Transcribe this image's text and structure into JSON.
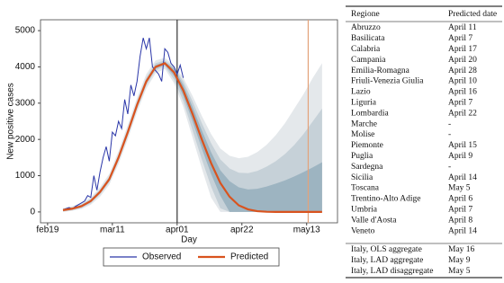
{
  "chart_data": {
    "type": "line",
    "x_label": "Day",
    "y_label": "New positive cases",
    "xlim": [
      -2.3,
      94
    ],
    "ylim": [
      -300,
      5300
    ],
    "xticks": [
      {
        "value": 0,
        "label": "feb19"
      },
      {
        "value": 21,
        "label": "mar11"
      },
      {
        "value": 42,
        "label": "apr01"
      },
      {
        "value": 63,
        "label": "apr22"
      },
      {
        "value": 84,
        "label": "may13"
      }
    ],
    "yticks": [
      0,
      1000,
      2000,
      3000,
      4000,
      5000
    ],
    "legend": "bottom",
    "series": [
      {
        "name": "Observed",
        "color": "#2a36a8",
        "x": [
          5,
          6,
          7,
          8,
          9,
          10,
          11,
          12,
          13,
          14,
          15,
          16,
          17,
          18,
          19,
          20,
          21,
          22,
          23,
          24,
          25,
          26,
          27,
          28,
          29,
          30,
          31,
          32,
          33,
          34,
          35,
          36,
          37,
          38,
          39,
          40,
          41,
          42,
          43,
          44
        ],
        "values": [
          60,
          90,
          120,
          80,
          150,
          200,
          250,
          300,
          450,
          400,
          1000,
          600,
          1100,
          1500,
          1800,
          1400,
          2200,
          2100,
          2500,
          2300,
          3100,
          2700,
          3500,
          3200,
          3600,
          4300,
          4800,
          4500,
          4800,
          4000,
          3900,
          3800,
          3600,
          4500,
          4400,
          4100,
          4000,
          3800,
          4050,
          3700
        ]
      },
      {
        "name": "Predicted",
        "color": "#d9531e",
        "x": [
          5,
          8,
          11,
          14,
          17,
          20,
          23,
          26,
          29,
          32,
          35,
          38,
          41,
          44,
          47,
          50,
          53,
          56,
          59,
          62,
          65,
          68,
          71,
          74,
          77,
          80,
          83,
          86,
          89
        ],
        "values": [
          50,
          90,
          160,
          300,
          550,
          900,
          1500,
          2200,
          2950,
          3600,
          4000,
          4100,
          3850,
          3350,
          2700,
          2000,
          1350,
          800,
          420,
          180,
          70,
          20,
          5,
          0,
          0,
          0,
          0,
          0,
          0
        ]
      }
    ],
    "bands": [
      {
        "color": "#e4e8eb",
        "upper": [
          110,
          160,
          250,
          400,
          680,
          1050,
          1680,
          2400,
          3150,
          3800,
          4180,
          4250,
          4050,
          3700,
          3200,
          2650,
          2150,
          1750,
          1550,
          1480,
          1520,
          1650,
          1850,
          2120,
          2450,
          2850,
          3250,
          3700,
          4100
        ],
        "lower": [
          0,
          30,
          80,
          200,
          420,
          750,
          1320,
          2000,
          2750,
          3400,
          3820,
          3950,
          3550,
          2900,
          2050,
          1200,
          400,
          0,
          0,
          0,
          0,
          0,
          0,
          0,
          0,
          0,
          0,
          0,
          0
        ]
      },
      {
        "color": "#c6d1d8",
        "upper": [
          90,
          130,
          210,
          360,
          620,
          980,
          1600,
          2310,
          3060,
          3710,
          4100,
          4180,
          4000,
          3600,
          3050,
          2450,
          1900,
          1450,
          1200,
          1080,
          1070,
          1130,
          1250,
          1400,
          1600,
          1850,
          2150,
          2500,
          2850
        ],
        "lower": [
          10,
          50,
          110,
          240,
          480,
          820,
          1400,
          2090,
          2840,
          3490,
          3900,
          4020,
          3650,
          3050,
          2250,
          1450,
          700,
          100,
          0,
          0,
          0,
          0,
          0,
          0,
          0,
          0,
          0,
          0,
          0
        ]
      },
      {
        "color": "#9db4c1",
        "upper": [
          70,
          110,
          185,
          330,
          585,
          940,
          1550,
          2250,
          3000,
          3650,
          4050,
          4140,
          3950,
          3500,
          2900,
          2250,
          1650,
          1150,
          850,
          680,
          620,
          640,
          700,
          780,
          870,
          980,
          1100,
          1230,
          1370
        ],
        "lower": [
          30,
          70,
          135,
          270,
          515,
          860,
          1450,
          2150,
          2900,
          3550,
          3950,
          4060,
          3750,
          3200,
          2500,
          1750,
          1050,
          450,
          0,
          0,
          0,
          0,
          0,
          0,
          0,
          0,
          0,
          0,
          0
        ]
      }
    ],
    "vlines": [
      {
        "value": 42,
        "color": "#333333"
      },
      {
        "value": 84.5,
        "color": "#e3a27a"
      }
    ]
  },
  "table": {
    "header": [
      "Regione",
      "Predicted date"
    ],
    "rows": [
      [
        "Abruzzo",
        "April 11"
      ],
      [
        "Basilicata",
        "April 7"
      ],
      [
        "Calabria",
        "April 17"
      ],
      [
        "Campania",
        "April 20"
      ],
      [
        "Emilia-Romagna",
        "April 28"
      ],
      [
        "Friuli-Venezia Giulia",
        "April 10"
      ],
      [
        "Lazio",
        "April 16"
      ],
      [
        "Liguria",
        "April 7"
      ],
      [
        "Lombardia",
        "April 22"
      ],
      [
        "Marche",
        "-"
      ],
      [
        "Molise",
        "-"
      ],
      [
        "Piemonte",
        "April 15"
      ],
      [
        "Puglia",
        "April 9"
      ],
      [
        "Sardegna",
        "-"
      ],
      [
        "Sicilia",
        "April 14"
      ],
      [
        "Toscana",
        "May 5"
      ],
      [
        "Trentino-Alto Adige",
        "April 6"
      ],
      [
        "Umbria",
        "April 7"
      ],
      [
        "Valle d'Aosta",
        "April 8"
      ],
      [
        "Veneto",
        "April 14"
      ]
    ],
    "aggregates": [
      [
        "Italy, OLS aggregate",
        "May 16"
      ],
      [
        "Italy, LAD aggregate",
        "May 9"
      ],
      [
        "Italy, LAD disaggregate",
        "May 5"
      ]
    ]
  }
}
